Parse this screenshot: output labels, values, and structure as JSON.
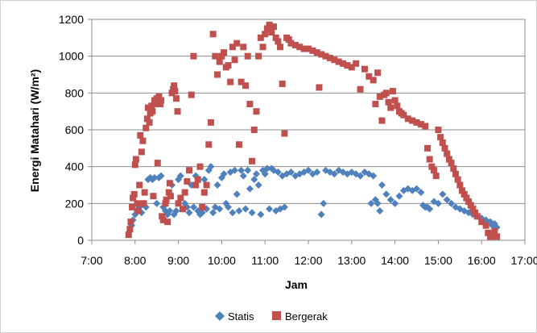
{
  "chart_data": {
    "type": "scatter",
    "title": "",
    "xlabel": "Jam",
    "ylabel": "Energi Matahari (W/m²)",
    "xlim": [
      7,
      17
    ],
    "ylim": [
      0,
      1200
    ],
    "x_unit": "hour of day",
    "x_ticks": [
      "7:00",
      "8:00",
      "9:00",
      "10:00",
      "11:00",
      "12:00",
      "13:00",
      "14:00",
      "15:00",
      "16:00",
      "17:00"
    ],
    "y_ticks": [
      "0",
      "200",
      "400",
      "600",
      "800",
      "1000",
      "1200"
    ],
    "grid": "horizontal major gridlines",
    "legend_position": "bottom",
    "series": [
      {
        "name": "Statis",
        "color": "#4f81bd",
        "marker": "diamond",
        "points": [
          [
            7.88,
            50
          ],
          [
            7.92,
            80
          ],
          [
            7.95,
            110
          ],
          [
            8.0,
            140
          ],
          [
            8.05,
            160
          ],
          [
            8.1,
            180
          ],
          [
            8.15,
            150
          ],
          [
            8.2,
            200
          ],
          [
            8.25,
            180
          ],
          [
            8.3,
            330
          ],
          [
            8.35,
            340
          ],
          [
            8.4,
            330
          ],
          [
            8.45,
            340
          ],
          [
            8.5,
            200
          ],
          [
            8.55,
            340
          ],
          [
            8.6,
            350
          ],
          [
            8.65,
            180
          ],
          [
            8.7,
            160
          ],
          [
            8.75,
            140
          ],
          [
            8.8,
            160
          ],
          [
            8.85,
            300
          ],
          [
            8.9,
            140
          ],
          [
            8.95,
            160
          ],
          [
            9.0,
            330
          ],
          [
            9.05,
            350
          ],
          [
            9.1,
            170
          ],
          [
            9.15,
            200
          ],
          [
            9.2,
            180
          ],
          [
            9.25,
            150
          ],
          [
            9.3,
            300
          ],
          [
            9.35,
            180
          ],
          [
            9.4,
            350
          ],
          [
            9.45,
            160
          ],
          [
            9.5,
            140
          ],
          [
            9.55,
            150
          ],
          [
            9.6,
            330
          ],
          [
            9.65,
            170
          ],
          [
            9.7,
            380
          ],
          [
            9.75,
            400
          ],
          [
            9.8,
            150
          ],
          [
            9.85,
            180
          ],
          [
            9.9,
            300
          ],
          [
            9.95,
            170
          ],
          [
            10.0,
            340
          ],
          [
            10.05,
            360
          ],
          [
            10.1,
            200
          ],
          [
            10.15,
            180
          ],
          [
            10.2,
            370
          ],
          [
            10.25,
            150
          ],
          [
            10.3,
            380
          ],
          [
            10.35,
            250
          ],
          [
            10.4,
            160
          ],
          [
            10.45,
            380
          ],
          [
            10.5,
            350
          ],
          [
            10.55,
            170
          ],
          [
            10.6,
            380
          ],
          [
            10.65,
            280
          ],
          [
            10.7,
            150
          ],
          [
            10.75,
            330
          ],
          [
            10.8,
            360
          ],
          [
            10.85,
            300
          ],
          [
            10.9,
            140
          ],
          [
            10.95,
            380
          ],
          [
            11.0,
            360
          ],
          [
            11.05,
            390
          ],
          [
            11.1,
            170
          ],
          [
            11.15,
            390
          ],
          [
            11.2,
            380
          ],
          [
            11.25,
            160
          ],
          [
            11.3,
            370
          ],
          [
            11.35,
            170
          ],
          [
            11.4,
            350
          ],
          [
            11.45,
            180
          ],
          [
            11.5,
            360
          ],
          [
            11.6,
            370
          ],
          [
            11.7,
            350
          ],
          [
            11.8,
            360
          ],
          [
            11.9,
            370
          ],
          [
            12.0,
            380
          ],
          [
            12.1,
            360
          ],
          [
            12.2,
            370
          ],
          [
            12.3,
            140
          ],
          [
            12.35,
            200
          ],
          [
            12.4,
            380
          ],
          [
            12.5,
            370
          ],
          [
            12.6,
            360
          ],
          [
            12.7,
            380
          ],
          [
            12.8,
            370
          ],
          [
            12.9,
            360
          ],
          [
            13.0,
            370
          ],
          [
            13.1,
            360
          ],
          [
            13.2,
            350
          ],
          [
            13.3,
            370
          ],
          [
            13.4,
            360
          ],
          [
            13.45,
            200
          ],
          [
            13.5,
            350
          ],
          [
            13.55,
            220
          ],
          [
            13.6,
            200
          ],
          [
            13.65,
            160
          ],
          [
            13.7,
            300
          ],
          [
            13.8,
            250
          ],
          [
            13.9,
            220
          ],
          [
            14.0,
            200
          ],
          [
            14.1,
            240
          ],
          [
            14.2,
            270
          ],
          [
            14.3,
            280
          ],
          [
            14.4,
            270
          ],
          [
            14.5,
            280
          ],
          [
            14.6,
            260
          ],
          [
            14.65,
            190
          ],
          [
            14.7,
            180
          ],
          [
            14.75,
            180
          ],
          [
            14.8,
            170
          ],
          [
            14.9,
            210
          ],
          [
            15.0,
            200
          ],
          [
            15.1,
            250
          ],
          [
            15.2,
            220
          ],
          [
            15.3,
            200
          ],
          [
            15.4,
            180
          ],
          [
            15.5,
            170
          ],
          [
            15.6,
            160
          ],
          [
            15.7,
            150
          ],
          [
            15.8,
            140
          ],
          [
            15.9,
            130
          ],
          [
            16.0,
            120
          ],
          [
            16.1,
            110
          ],
          [
            16.2,
            100
          ],
          [
            16.25,
            80
          ],
          [
            16.3,
            90
          ],
          [
            16.35,
            70
          ]
        ]
      },
      {
        "name": "Bergerak",
        "color": "#c0504d",
        "marker": "square",
        "points": [
          [
            7.85,
            30
          ],
          [
            7.88,
            60
          ],
          [
            7.9,
            100
          ],
          [
            7.93,
            180
          ],
          [
            7.95,
            230
          ],
          [
            7.98,
            250
          ],
          [
            8.0,
            410
          ],
          [
            8.02,
            440
          ],
          [
            8.05,
            200
          ],
          [
            8.08,
            160
          ],
          [
            8.1,
            300
          ],
          [
            8.12,
            570
          ],
          [
            8.15,
            480
          ],
          [
            8.18,
            540
          ],
          [
            8.2,
            200
          ],
          [
            8.22,
            260
          ],
          [
            8.25,
            610
          ],
          [
            8.28,
            660
          ],
          [
            8.3,
            720
          ],
          [
            8.33,
            640
          ],
          [
            8.35,
            690
          ],
          [
            8.38,
            730
          ],
          [
            8.4,
            700
          ],
          [
            8.42,
            240
          ],
          [
            8.45,
            760
          ],
          [
            8.48,
            740
          ],
          [
            8.5,
            770
          ],
          [
            8.52,
            420
          ],
          [
            8.55,
            780
          ],
          [
            8.58,
            740
          ],
          [
            8.6,
            760
          ],
          [
            8.62,
            130
          ],
          [
            8.65,
            110
          ],
          [
            8.7,
            200
          ],
          [
            8.72,
            220
          ],
          [
            8.75,
            100
          ],
          [
            8.78,
            260
          ],
          [
            8.8,
            310
          ],
          [
            8.82,
            240
          ],
          [
            8.85,
            800
          ],
          [
            8.88,
            820
          ],
          [
            8.9,
            840
          ],
          [
            8.92,
            810
          ],
          [
            8.95,
            770
          ],
          [
            8.98,
            700
          ],
          [
            9.0,
            200
          ],
          [
            9.05,
            230
          ],
          [
            9.1,
            170
          ],
          [
            9.15,
            260
          ],
          [
            9.2,
            320
          ],
          [
            9.25,
            380
          ],
          [
            9.3,
            790
          ],
          [
            9.35,
            1000
          ],
          [
            9.4,
            300
          ],
          [
            9.45,
            330
          ],
          [
            9.5,
            400
          ],
          [
            9.55,
            180
          ],
          [
            9.6,
            260
          ],
          [
            9.65,
            300
          ],
          [
            9.7,
            520
          ],
          [
            9.75,
            640
          ],
          [
            9.8,
            1120
          ],
          [
            9.85,
            1000
          ],
          [
            9.9,
            900
          ],
          [
            9.95,
            970
          ],
          [
            10.0,
            1000
          ],
          [
            10.05,
            1020
          ],
          [
            10.1,
            940
          ],
          [
            10.15,
            950
          ],
          [
            10.2,
            860
          ],
          [
            10.25,
            1050
          ],
          [
            10.3,
            980
          ],
          [
            10.35,
            1070
          ],
          [
            10.4,
            520
          ],
          [
            10.45,
            860
          ],
          [
            10.5,
            1050
          ],
          [
            10.55,
            840
          ],
          [
            10.6,
            1000
          ],
          [
            10.65,
            740
          ],
          [
            10.7,
            430
          ],
          [
            10.75,
            600
          ],
          [
            10.8,
            700
          ],
          [
            10.85,
            1000
          ],
          [
            10.9,
            1100
          ],
          [
            10.95,
            1050
          ],
          [
            11.0,
            1120
          ],
          [
            11.05,
            1150
          ],
          [
            11.1,
            1170
          ],
          [
            11.15,
            1130
          ],
          [
            11.2,
            1160
          ],
          [
            11.25,
            1100
          ],
          [
            11.3,
            1080
          ],
          [
            11.35,
            1050
          ],
          [
            11.4,
            850
          ],
          [
            11.45,
            580
          ],
          [
            11.5,
            1100
          ],
          [
            11.55,
            1090
          ],
          [
            11.6,
            1070
          ],
          [
            11.7,
            1060
          ],
          [
            11.8,
            1050
          ],
          [
            11.9,
            1040
          ],
          [
            12.0,
            1040
          ],
          [
            12.1,
            1030
          ],
          [
            12.2,
            1020
          ],
          [
            12.25,
            830
          ],
          [
            12.3,
            1010
          ],
          [
            12.4,
            1000
          ],
          [
            12.5,
            990
          ],
          [
            12.6,
            980
          ],
          [
            12.7,
            970
          ],
          [
            12.8,
            960
          ],
          [
            12.9,
            950
          ],
          [
            13.0,
            940
          ],
          [
            13.1,
            960
          ],
          [
            13.2,
            820
          ],
          [
            13.3,
            930
          ],
          [
            13.4,
            890
          ],
          [
            13.5,
            870
          ],
          [
            13.55,
            740
          ],
          [
            13.6,
            910
          ],
          [
            13.65,
            780
          ],
          [
            13.7,
            650
          ],
          [
            13.75,
            790
          ],
          [
            13.8,
            800
          ],
          [
            13.85,
            750
          ],
          [
            13.9,
            720
          ],
          [
            13.95,
            810
          ],
          [
            14.0,
            760
          ],
          [
            14.05,
            730
          ],
          [
            14.1,
            700
          ],
          [
            14.15,
            690
          ],
          [
            14.2,
            680
          ],
          [
            14.3,
            660
          ],
          [
            14.4,
            650
          ],
          [
            14.5,
            640
          ],
          [
            14.6,
            630
          ],
          [
            14.7,
            620
          ],
          [
            14.75,
            500
          ],
          [
            14.8,
            440
          ],
          [
            14.85,
            400
          ],
          [
            14.9,
            380
          ],
          [
            14.95,
            350
          ],
          [
            15.0,
            600
          ],
          [
            15.05,
            560
          ],
          [
            15.1,
            530
          ],
          [
            15.15,
            500
          ],
          [
            15.2,
            470
          ],
          [
            15.25,
            440
          ],
          [
            15.3,
            420
          ],
          [
            15.35,
            390
          ],
          [
            15.4,
            360
          ],
          [
            15.45,
            330
          ],
          [
            15.5,
            300
          ],
          [
            15.55,
            270
          ],
          [
            15.6,
            250
          ],
          [
            15.65,
            230
          ],
          [
            15.7,
            210
          ],
          [
            15.75,
            190
          ],
          [
            15.8,
            170
          ],
          [
            15.85,
            150
          ],
          [
            15.9,
            130
          ],
          [
            16.0,
            100
          ],
          [
            16.1,
            80
          ],
          [
            16.15,
            40
          ],
          [
            16.2,
            20
          ],
          [
            16.25,
            30
          ],
          [
            16.3,
            50
          ],
          [
            16.35,
            20
          ]
        ]
      }
    ]
  }
}
